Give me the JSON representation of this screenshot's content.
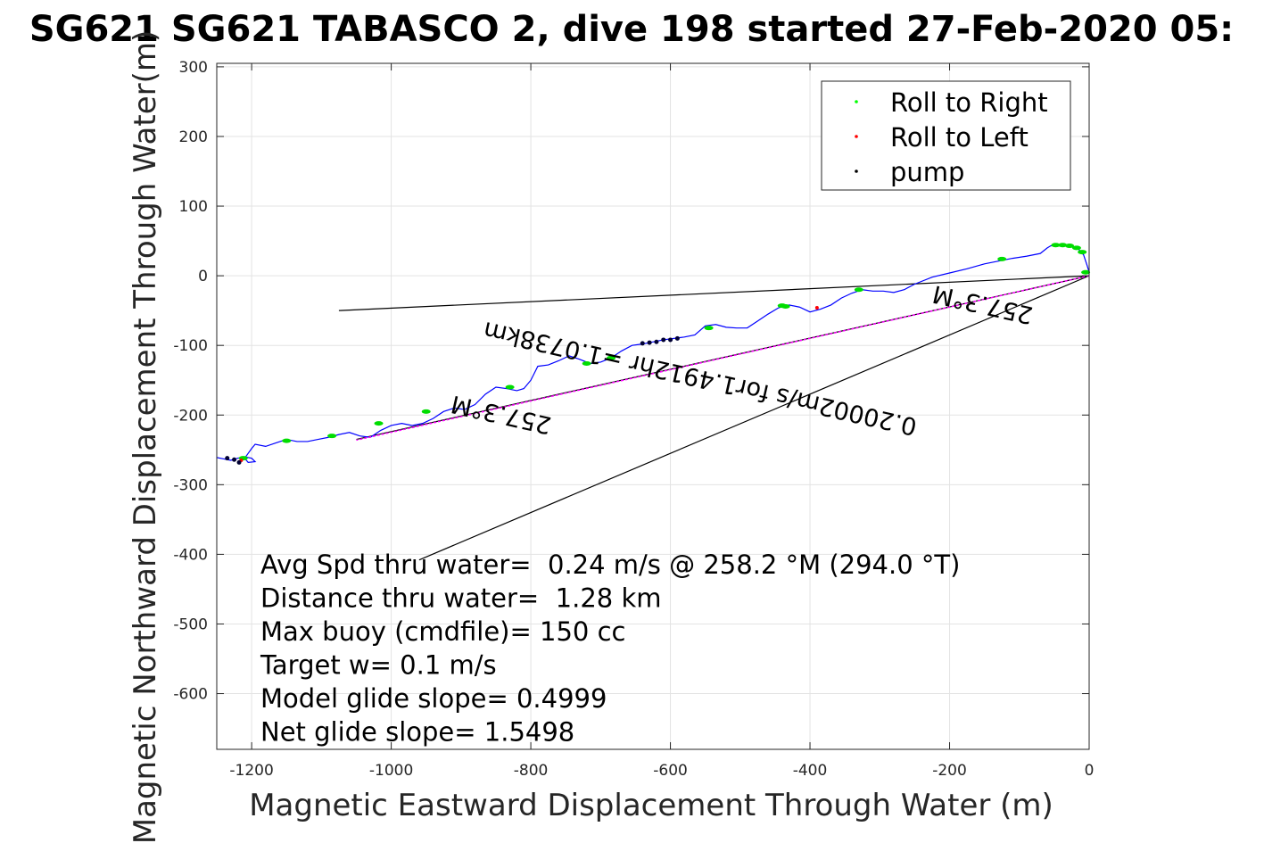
{
  "chart_data": {
    "type": "line",
    "title": "SG621 SG621 TABASCO 2, dive 198 started 27-Feb-2020 05:",
    "xlabel": "Magnetic Eastward Displacement Through Water (m)",
    "ylabel": "Magnetic Northward Displacement Through Water(m)",
    "xlim": [
      -1250,
      0
    ],
    "ylim": [
      -680,
      305
    ],
    "xticks": [
      -1200,
      -1000,
      -800,
      -600,
      -400,
      -200,
      0
    ],
    "yticks": [
      300,
      200,
      100,
      0,
      -100,
      -200,
      -300,
      -400,
      -500,
      -600
    ],
    "grid": true,
    "legend": {
      "placement": "top-right",
      "entries": [
        {
          "label": "Roll to Right",
          "color": "#00ff00"
        },
        {
          "label": "Roll to Left",
          "color": "#ff0000"
        },
        {
          "label": "pump",
          "color": "#000000"
        }
      ]
    },
    "series": [
      {
        "color": "#0000ff",
        "x": [
          0,
          -3,
          -8,
          -15,
          -25,
          -35,
          -45,
          -55,
          -60,
          -70,
          -90,
          -110,
          -130,
          -150,
          -175,
          -200,
          -225,
          -250,
          -265,
          -280,
          -295,
          -310,
          -325,
          -340,
          -355,
          -370,
          -385,
          -400,
          -415,
          -430,
          -445,
          -460,
          -475,
          -490,
          -505,
          -520,
          -535,
          -550,
          -565,
          -580,
          -595,
          -610,
          -625,
          -640,
          -655,
          -670,
          -685,
          -700,
          -715,
          -730,
          -745,
          -760,
          -775,
          -790,
          -800,
          -810,
          -820,
          -835,
          -850,
          -865,
          -880,
          -895,
          -910,
          -925,
          -940,
          -955,
          -970,
          -985,
          -1000,
          -1015,
          -1030,
          -1045,
          -1060,
          -1075,
          -1090,
          -1105,
          -1120,
          -1135,
          -1150,
          -1165,
          -1180,
          -1195,
          -1200,
          -1205,
          -1210,
          -1205,
          -1195,
          -1200,
          -1210,
          -1220,
          -1230,
          -1240,
          -1250
        ],
        "y": [
          5,
          15,
          30,
          38,
          42,
          44,
          44,
          43,
          40,
          32,
          28,
          25,
          21,
          17,
          10,
          4,
          -2,
          -12,
          -20,
          -24,
          -22,
          -22,
          -20,
          -25,
          -32,
          -42,
          -48,
          -52,
          -45,
          -42,
          -46,
          -55,
          -65,
          -75,
          -75,
          -74,
          -70,
          -72,
          -85,
          -88,
          -90,
          -92,
          -95,
          -98,
          -100,
          -108,
          -118,
          -124,
          -126,
          -120,
          -115,
          -122,
          -128,
          -130,
          -150,
          -162,
          -165,
          -162,
          -160,
          -170,
          -185,
          -192,
          -190,
          -195,
          -205,
          -212,
          -215,
          -212,
          -215,
          -222,
          -232,
          -230,
          -225,
          -228,
          -232,
          -235,
          -238,
          -238,
          -235,
          -240,
          -245,
          -242,
          -248,
          -255,
          -262,
          -268,
          -267,
          -262,
          -260,
          -262,
          -265,
          -263,
          -261
        ]
      },
      {
        "color": "#ff00ff",
        "x": [
          0,
          -1050
        ],
        "y": [
          0,
          -236
        ]
      }
    ],
    "reference_lines": [
      {
        "color": "#000000",
        "x": [
          0,
          -1075
        ],
        "y": [
          0,
          -50
        ]
      },
      {
        "color": "#000000",
        "x": [
          0,
          -1050
        ],
        "y": [
          0,
          -235
        ]
      },
      {
        "color": "#000000",
        "x": [
          0,
          -960
        ],
        "y": [
          0,
          -408
        ]
      }
    ],
    "roll_right_x": [
      -5,
      -10,
      -18,
      -28,
      -38,
      -48,
      -125,
      -330,
      -435,
      -440,
      -545,
      -685,
      -720,
      -830,
      -950,
      -1018,
      -1085,
      -1150,
      -1212
    ],
    "roll_right_y": [
      5,
      34,
      40,
      43,
      44,
      44,
      24,
      -20,
      -44,
      -43,
      -75,
      -118,
      -126,
      -160,
      -195,
      -212,
      -230,
      -237,
      -262
    ],
    "roll_left_x": [
      -390,
      -1215
    ],
    "roll_left_y": [
      -46,
      -265
    ],
    "pump_x": [
      -610,
      -620,
      -630,
      -640,
      -600,
      -590,
      -1218,
      -1225,
      -1235
    ],
    "pump_y": [
      -92,
      -95,
      -96,
      -97,
      -92,
      -90,
      -268,
      -264,
      -262
    ],
    "annotations": [
      {
        "text": "257.3°M",
        "x": -150,
        "y": -30,
        "rotate": 192.7
      },
      {
        "text": "257.3°M",
        "x": -840,
        "y": -188,
        "rotate": 192.7
      },
      {
        "text": "0.20002m/s for1.4912hr =1.0738km",
        "x": -555,
        "y": -136,
        "rotate": 192.7
      }
    ],
    "stats_lines": [
      "Avg Spd thru water=  0.24 m/s @ 258.2 °M (294.0 °T)",
      "Distance thru water=  1.28 km",
      "Max buoy (cmdfile)= 150 cc",
      "Target w= 0.1 m/s",
      "Model glide slope= 0.4999",
      "Net glide slope= 1.5498"
    ]
  }
}
